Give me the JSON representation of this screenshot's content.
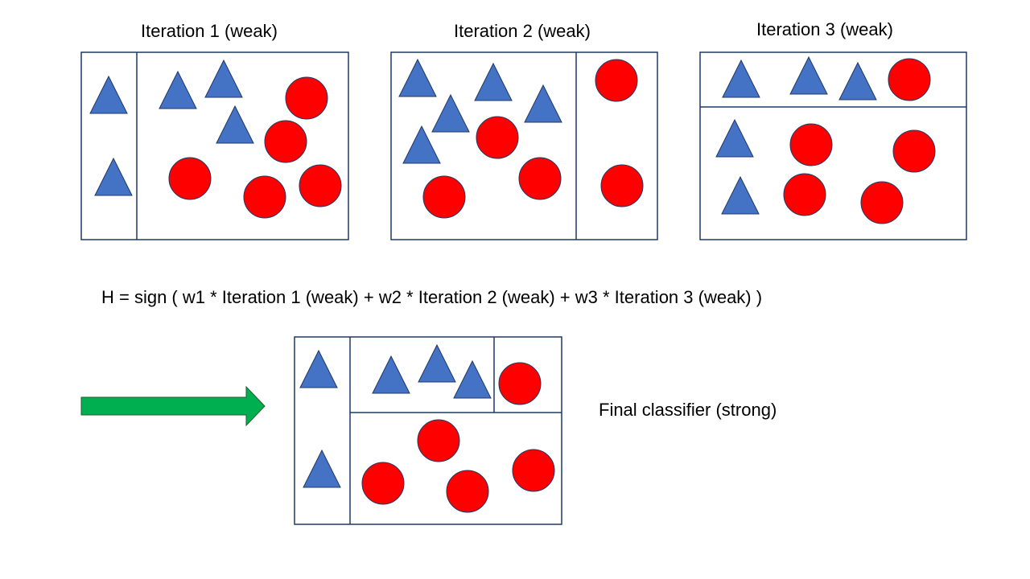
{
  "panels": [
    {
      "title": "Iteration 1 (weak)"
    },
    {
      "title": "Iteration 2 (weak)"
    },
    {
      "title": "Iteration 3 (weak)"
    }
  ],
  "formula": "H = sign ( w1 * Iteration 1 (weak) + w2 * Iteration 2 (weak) + w3 * Iteration 3 (weak) )",
  "final": {
    "label": "Final classifier (strong)"
  },
  "colors": {
    "triangle_fill": "#4472C4",
    "triangle_stroke": "#1F3864",
    "circle_fill": "#FF0000",
    "circle_stroke": "#1F3864",
    "box_stroke": "#1F3864",
    "arrow_fill": "#00B050",
    "arrow_stroke": "#1F5F2F"
  },
  "shapes": {
    "triangle": "triangle",
    "circle": "circle",
    "arrow": "arrow-right"
  }
}
